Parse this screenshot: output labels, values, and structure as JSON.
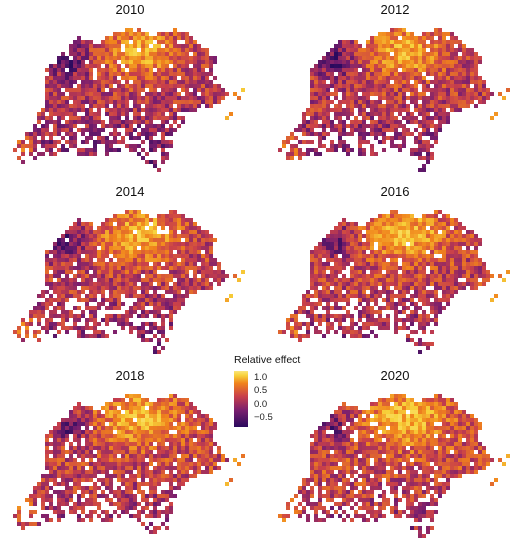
{
  "panels": [
    {
      "year": "2010",
      "variant": 0
    },
    {
      "year": "2012",
      "variant": 1
    },
    {
      "year": "2014",
      "variant": 2
    },
    {
      "year": "2016",
      "variant": 3
    },
    {
      "year": "2018",
      "variant": 4
    },
    {
      "year": "2020",
      "variant": 5
    }
  ],
  "legend": {
    "title": "Relative effect",
    "ticks": [
      "1.0",
      "0.5",
      "0.0",
      "−0.5"
    ]
  },
  "colors": {
    "low": "#2a0a5e",
    "mid_low": "#7a1f6e",
    "mid": "#c9404a",
    "mid_high": "#f0821c",
    "high": "#f7d13a",
    "highest": "#fbe57a"
  }
}
